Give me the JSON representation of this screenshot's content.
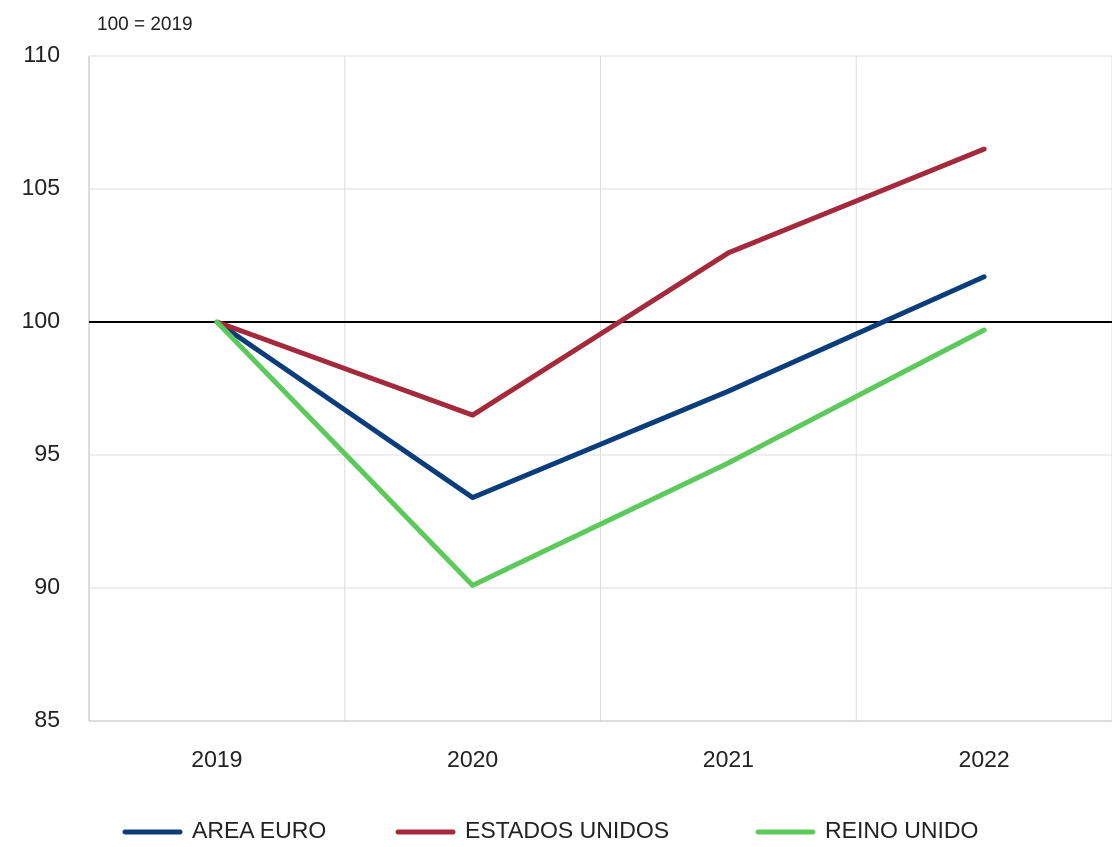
{
  "chart_data": {
    "type": "line",
    "y_unit_label": "100 = 2019",
    "categories": [
      "2019",
      "2020",
      "2021",
      "2022"
    ],
    "series": [
      {
        "name": "AREA EURO",
        "color": "#0b3c7c",
        "values": [
          100,
          93.4,
          97.4,
          101.7
        ]
      },
      {
        "name": "ESTADOS UNIDOS",
        "color": "#a3293b",
        "values": [
          100,
          96.5,
          102.6,
          106.5
        ]
      },
      {
        "name": "REINO UNIDO",
        "color": "#5cc95b",
        "values": [
          100,
          90.1,
          94.7,
          99.7
        ]
      }
    ],
    "ylim": [
      85,
      110
    ],
    "yticks": [
      85,
      90,
      95,
      100,
      105,
      110
    ],
    "grid": true,
    "reference_line": 100,
    "legend": "bottom"
  }
}
